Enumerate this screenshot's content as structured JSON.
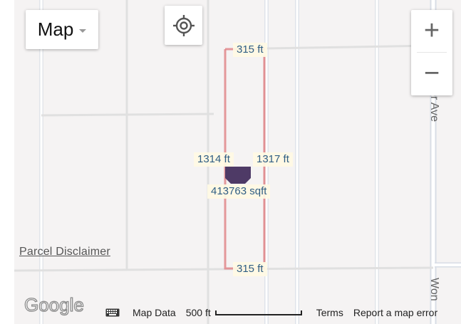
{
  "map_type": {
    "label": "Map"
  },
  "zoom": {
    "in_label": "+",
    "out_label": "−"
  },
  "measurements": {
    "top": "315 ft",
    "bottom": "315 ft",
    "left": "1314 ft",
    "right": "1317 ft",
    "area": "413763 sqft"
  },
  "streets": {
    "right_upper": "er Ave",
    "right_lower": "Won"
  },
  "parcel_disclaimer": "Parcel Disclaimer",
  "footer": {
    "map_data": "Map Data",
    "scale": "500 ft",
    "terms": "Terms",
    "report": "Report a map error"
  },
  "colors": {
    "parcel_outline": "#e0868a",
    "marker": "#4e3a66",
    "road": "#ffffff",
    "label_text": "#2f5e84"
  },
  "icons": [
    "locate-icon",
    "keyboard-icon",
    "marker-icon",
    "google-logo"
  ]
}
